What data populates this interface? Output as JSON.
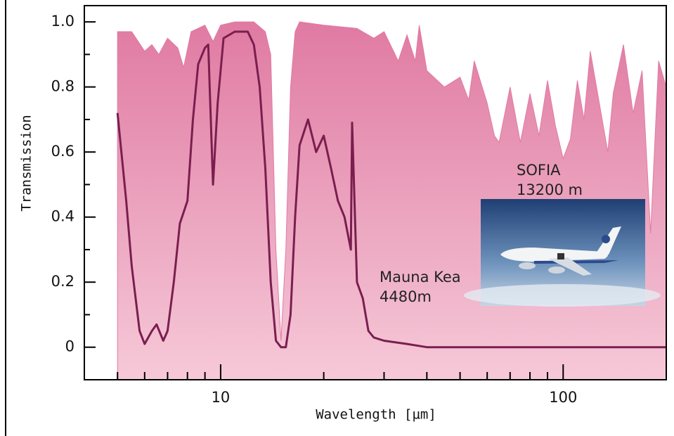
{
  "chart_data": {
    "type": "area-line",
    "xlabel": "Wavelength [µm]",
    "ylabel": "Transmission",
    "xscale": "log",
    "xlim": [
      4,
      200
    ],
    "xticks": [
      10,
      100
    ],
    "xminorticks": [
      5,
      6,
      7,
      8,
      9,
      20,
      30,
      40,
      50,
      60,
      70,
      80,
      90,
      200
    ],
    "ylim": [
      -0.1,
      1.05
    ],
    "yticks": [
      0,
      0.2,
      0.4,
      0.6,
      0.8,
      {
        "value": 1,
        "label": "1.0"
      }
    ],
    "yminorticks": [
      0.1,
      0.3,
      0.5,
      0.7,
      0.9
    ],
    "series": [
      {
        "name": "SOFIA",
        "altitude": "13200 m",
        "style": "area",
        "color": "#e27ba3",
        "x": [
          5,
          5.5,
          6,
          6.3,
          6.6,
          7,
          7.5,
          7.8,
          8.2,
          9,
          9.5,
          10,
          11,
          12.5,
          13.5,
          14,
          14.5,
          15,
          15.5,
          16,
          16.5,
          17,
          20,
          25,
          28,
          30,
          33,
          35,
          37,
          38,
          40,
          45,
          50,
          53,
          55,
          60,
          63,
          65,
          70,
          75,
          80,
          85,
          90,
          95,
          100,
          105,
          110,
          115,
          120,
          130,
          135,
          140,
          150,
          160,
          170,
          180,
          190,
          200
        ],
        "values": [
          0.97,
          0.97,
          0.91,
          0.93,
          0.9,
          0.95,
          0.92,
          0.86,
          0.97,
          0.99,
          0.94,
          0.99,
          1.0,
          1.0,
          0.97,
          0.9,
          0.3,
          0.02,
          0.3,
          0.8,
          0.97,
          1.0,
          0.99,
          0.98,
          0.95,
          0.97,
          0.88,
          0.96,
          0.88,
          0.99,
          0.85,
          0.8,
          0.83,
          0.76,
          0.88,
          0.75,
          0.65,
          0.63,
          0.8,
          0.63,
          0.78,
          0.65,
          0.82,
          0.68,
          0.58,
          0.64,
          0.82,
          0.7,
          0.91,
          0.7,
          0.6,
          0.78,
          0.93,
          0.72,
          0.85,
          0.35,
          0.88,
          0.8
        ]
      },
      {
        "name": "Mauna Kea",
        "altitude": "4480m",
        "style": "line",
        "color": "#7a1e4f",
        "x": [
          5,
          5.3,
          5.5,
          5.8,
          6,
          6.3,
          6.5,
          6.8,
          7,
          7.3,
          7.6,
          8,
          8.3,
          8.6,
          9,
          9.2,
          9.5,
          9.8,
          10.2,
          11,
          12,
          12.5,
          13,
          13.5,
          14,
          14.5,
          15,
          15.5,
          16,
          16.5,
          17,
          18,
          19,
          20,
          21,
          22,
          23,
          24,
          24.2,
          25,
          26,
          27,
          28,
          30,
          35,
          40,
          200
        ],
        "values": [
          0.72,
          0.45,
          0.25,
          0.05,
          0.01,
          0.05,
          0.07,
          0.02,
          0.05,
          0.2,
          0.38,
          0.45,
          0.7,
          0.87,
          0.92,
          0.93,
          0.5,
          0.75,
          0.95,
          0.97,
          0.97,
          0.93,
          0.8,
          0.55,
          0.2,
          0.02,
          0,
          0,
          0.1,
          0.4,
          0.62,
          0.7,
          0.6,
          0.65,
          0.55,
          0.45,
          0.4,
          0.3,
          0.69,
          0.2,
          0.15,
          0.05,
          0.03,
          0.02,
          0.01,
          0,
          0
        ]
      }
    ]
  }
}
